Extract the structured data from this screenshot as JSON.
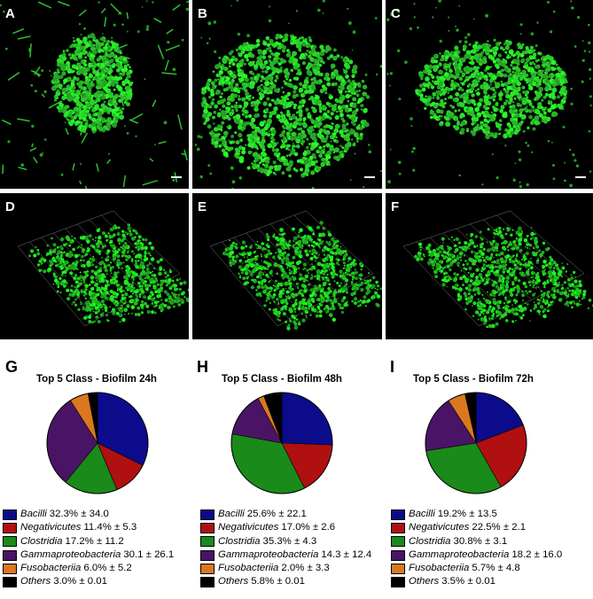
{
  "panels": {
    "top_labels": [
      "A",
      "B",
      "C"
    ],
    "middle_labels": [
      "D",
      "E",
      "F"
    ]
  },
  "colors": {
    "Bacilli": "#0b0b8c",
    "Negativicutes": "#b01010",
    "Clostridia": "#1a8a1a",
    "Gammaproteobacteria": "#4a1466",
    "Fusobacteriia": "#d9781e",
    "Others": "#000000"
  },
  "chart_data": [
    {
      "type": "pie",
      "panel_label": "G",
      "title": "Top 5 Class - Biofilm 24h",
      "categories": [
        "Bacilli",
        "Negativicutes",
        "Clostridia",
        "Gammaproteobacteria",
        "Fusobacteriia",
        "Others"
      ],
      "values": [
        32.3,
        11.4,
        17.2,
        30.1,
        6.0,
        3.0
      ],
      "legend_values": [
        "32.3% ± 34.0",
        "11.4% ± 5.3",
        "17.2% ± 11.2",
        "30.1 ± 26.1",
        "6.0% ± 5.2",
        "3.0% ± 0.01"
      ]
    },
    {
      "type": "pie",
      "panel_label": "H",
      "title": "Top 5 Class - Biofilm 48h",
      "categories": [
        "Bacilli",
        "Negativicutes",
        "Clostridia",
        "Gammaproteobacteria",
        "Fusobacteriia",
        "Others"
      ],
      "values": [
        25.6,
        17.0,
        35.3,
        14.3,
        2.0,
        5.8
      ],
      "legend_values": [
        "25.6% ± 22.1",
        "17.0% ± 2.6",
        "35.3% ± 4.3",
        "14.3 ± 12.4",
        "2.0% ± 3.3",
        "5.8% ± 0.01"
      ]
    },
    {
      "type": "pie",
      "panel_label": "I",
      "title": "Top 5 Class - Biofilm 72h",
      "categories": [
        "Bacilli",
        "Negativicutes",
        "Clostridia",
        "Gammaproteobacteria",
        "Fusobacteriia",
        "Others"
      ],
      "values": [
        19.2,
        22.5,
        30.8,
        18.2,
        5.7,
        3.5
      ],
      "legend_values": [
        "19.2% ± 13.5",
        "22.5% ± 2.1",
        "30.8% ± 3.1",
        "18.2 ± 16.0",
        "5.7% ± 4.8",
        "3.5% ± 0.01"
      ]
    }
  ]
}
